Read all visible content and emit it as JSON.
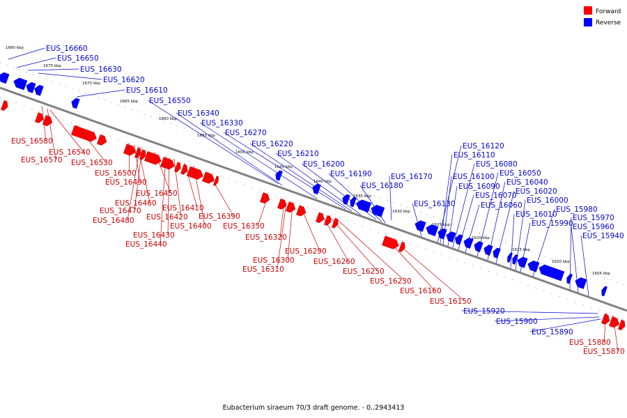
{
  "caption": "Eubacterium siraeum 70/3 draft genome. - 0..2943413",
  "legend": {
    "forward": {
      "label": "Forward",
      "color": "#ff0000"
    },
    "reverse": {
      "label": "Reverse",
      "color": "#0000ff"
    }
  },
  "colors": {
    "forward_label": "#cc0000",
    "reverse_label": "#0000cc",
    "axis": "#808080"
  },
  "ticks": [
    "1680 kbp",
    "1675 kbp",
    "1670 kbp",
    "1665 kbp",
    "1660 kbp",
    "1655 kbp",
    "1650 kbp",
    "1645 kbp",
    "1640 kbp",
    "1635 kbp",
    "1630 kbp",
    "1625 kbp",
    "1620 kbp",
    "1615 kbp",
    "1610 kbp",
    "1605 kbp"
  ],
  "reverse_genes": [
    "EUS_16660",
    "EUS_16650",
    "EUS_16630",
    "EUS_16620",
    "EUS_16610",
    "EUS_16550",
    "EUS_16340",
    "EUS_16330",
    "EUS_16270",
    "EUS_16220",
    "EUS_16210",
    "EUS_16200",
    "EUS_16190",
    "EUS_16180",
    "EUS_16170",
    "EUS_16130",
    "EUS_16120",
    "EUS_16110",
    "EUS_16100",
    "EUS_16090",
    "EUS_16080",
    "EUS_16070",
    "EUS_16060",
    "EUS_16050",
    "EUS_16040",
    "EUS_16020",
    "EUS_16010",
    "EUS_16000",
    "EUS_15990",
    "EUS_15980",
    "EUS_15970",
    "EUS_15960",
    "EUS_15940",
    "EUS_15920",
    "EUS_15900",
    "EUS_15890"
  ],
  "forward_genes": [
    "EUS_16580",
    "EUS_16570",
    "EUS_16540",
    "EUS_16530",
    "EUS_16500",
    "EUS_16490",
    "EUS_16460",
    "EUS_16480",
    "EUS_16470",
    "EUS_16450",
    "EUS_16440",
    "EUS_16430",
    "EUS_16420",
    "EUS_16410",
    "EUS_16400",
    "EUS_16390",
    "EUS_16350",
    "EUS_16320",
    "EUS_16310",
    "EUS_16300",
    "EUS_16290",
    "EUS_16260",
    "EUS_16250",
    "EUS_16230",
    "EUS_16160",
    "EUS_16150",
    "EUS_15880",
    "EUS_15870"
  ]
}
